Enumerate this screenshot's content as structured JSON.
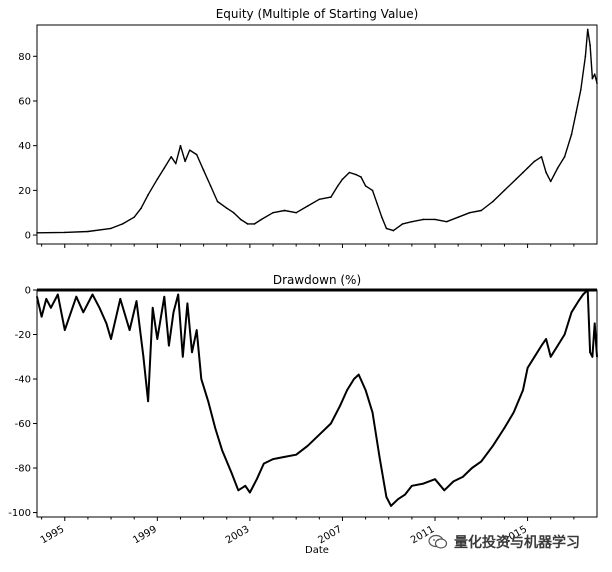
{
  "chart_data": [
    {
      "type": "line",
      "title": "Equity (Multiple of Starting Value)",
      "xlabel": "",
      "ylabel": "",
      "xlim": [
        1993.8,
        2018.0
      ],
      "ylim": [
        -4,
        94
      ],
      "yticks": [
        0,
        20,
        40,
        60,
        80
      ],
      "x_ticks_shown": false,
      "grid": false,
      "series": [
        {
          "x": [
            1993.8,
            1995.0,
            1996.0,
            1997.0,
            1997.5,
            1998.0,
            1998.3,
            1998.6,
            1999.0,
            1999.3,
            1999.6,
            1999.8,
            2000.0,
            2000.2,
            2000.4,
            2000.7,
            2001.0,
            2001.3,
            2001.6,
            2002.0,
            2002.3,
            2002.6,
            2002.9,
            2003.2,
            2003.5,
            2004.0,
            2004.5,
            2005.0,
            2005.5,
            2006.0,
            2006.5,
            2006.8,
            2007.0,
            2007.3,
            2007.6,
            2007.8,
            2008.0,
            2008.3,
            2008.5,
            2008.7,
            2008.9,
            2009.2,
            2009.6,
            2010.0,
            2010.5,
            2011.0,
            2011.5,
            2012.0,
            2012.5,
            2013.0,
            2013.5,
            2014.0,
            2014.5,
            2014.8,
            2015.0,
            2015.3,
            2015.6,
            2015.8,
            2016.0,
            2016.3,
            2016.6,
            2016.9,
            2017.1,
            2017.3,
            2017.5,
            2017.6,
            2017.7,
            2017.8,
            2017.9,
            2018.0
          ],
          "y": [
            1,
            1.2,
            1.6,
            3,
            5,
            8,
            12,
            18,
            25,
            30,
            35,
            32,
            40,
            33,
            38,
            36,
            29,
            22,
            15,
            12,
            10,
            7,
            5,
            5,
            7,
            10,
            11,
            10,
            13,
            16,
            17,
            22,
            25,
            28,
            27,
            26,
            22,
            20,
            14,
            8,
            3,
            2,
            5,
            6,
            7,
            7,
            6,
            8,
            10,
            11,
            15,
            20,
            25,
            28,
            30,
            33,
            35,
            28,
            24,
            30,
            35,
            45,
            55,
            65,
            80,
            92,
            85,
            70,
            72,
            68
          ]
        }
      ]
    },
    {
      "type": "line",
      "title": "Drawdown (%)",
      "xlabel": "Date",
      "ylabel": "",
      "xlim": [
        1993.8,
        2018.0
      ],
      "ylim": [
        -102,
        0
      ],
      "yticks": [
        0,
        -20,
        -40,
        -60,
        -80,
        -100
      ],
      "xticks": [
        1995,
        1999,
        2003,
        2007,
        2011,
        2015
      ],
      "xtick_labels": [
        "1995",
        "1999",
        "2003",
        "2007",
        "2011",
        "2015"
      ],
      "grid": false,
      "series": [
        {
          "x": [
            1993.8,
            1994.0,
            1994.2,
            1994.4,
            1994.7,
            1995.0,
            1995.5,
            1995.8,
            1996.2,
            1996.5,
            1996.8,
            1997.0,
            1997.4,
            1997.8,
            1998.1,
            1998.4,
            1998.6,
            1998.8,
            1999.0,
            1999.3,
            1999.5,
            1999.7,
            1999.9,
            2000.1,
            2000.3,
            2000.5,
            2000.7,
            2000.9,
            2001.2,
            2001.5,
            2001.8,
            2002.2,
            2002.5,
            2002.8,
            2003.0,
            2003.3,
            2003.6,
            2004.0,
            2004.5,
            2005.0,
            2005.5,
            2006.0,
            2006.5,
            2006.9,
            2007.2,
            2007.5,
            2007.7,
            2008.0,
            2008.3,
            2008.6,
            2008.9,
            2009.1,
            2009.4,
            2009.7,
            2010.0,
            2010.5,
            2011.0,
            2011.4,
            2011.8,
            2012.2,
            2012.6,
            2013.0,
            2013.5,
            2014.0,
            2014.4,
            2014.8,
            2015.0,
            2015.3,
            2015.6,
            2015.8,
            2016.0,
            2016.3,
            2016.6,
            2016.9,
            2017.2,
            2017.4,
            2017.6,
            2017.7,
            2017.8,
            2017.9,
            2018.0
          ],
          "y": [
            -3,
            -12,
            -4,
            -8,
            -2,
            -18,
            -3,
            -10,
            -2,
            -8,
            -15,
            -22,
            -4,
            -18,
            -5,
            -30,
            -50,
            -8,
            -22,
            -3,
            -25,
            -10,
            -2,
            -30,
            -6,
            -28,
            -18,
            -40,
            -50,
            -62,
            -72,
            -82,
            -90,
            -88,
            -91,
            -85,
            -78,
            -76,
            -75,
            -74,
            -70,
            -65,
            -60,
            -52,
            -45,
            -40,
            -38,
            -45,
            -55,
            -75,
            -93,
            -97,
            -94,
            -92,
            -88,
            -87,
            -85,
            -90,
            -86,
            -84,
            -80,
            -77,
            -70,
            -62,
            -55,
            -45,
            -35,
            -30,
            -25,
            -22,
            -30,
            -25,
            -20,
            -10,
            -5,
            -2,
            0,
            -28,
            -30,
            -15,
            -30
          ]
        }
      ]
    }
  ],
  "watermark": {
    "text": "量化投资与机器学习",
    "icon": "chat-bubbles-icon"
  }
}
